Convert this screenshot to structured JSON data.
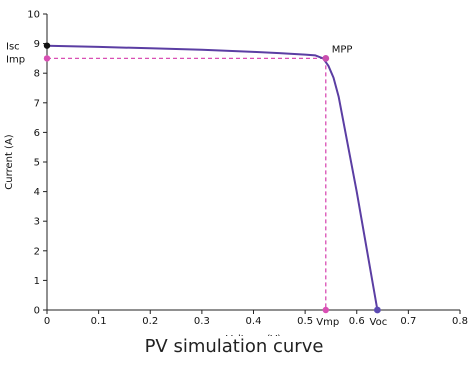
{
  "caption": "PV simulation curve",
  "chart_data": {
    "type": "line",
    "title": "",
    "xlabel": "Voltage (V)",
    "ylabel": "Current (A)",
    "xlim": [
      0,
      0.8
    ],
    "ylim": [
      0,
      10
    ],
    "x_ticks": [
      "0",
      "0.1",
      "0.2",
      "0.3",
      "0.4",
      "0.5",
      "0.6",
      "0.7",
      "0.8"
    ],
    "y_ticks": [
      "0",
      "1",
      "2",
      "3",
      "4",
      "5",
      "6",
      "7",
      "8",
      "9",
      "10"
    ],
    "grid": false,
    "series": [
      {
        "x": [
          0,
          0.1,
          0.2,
          0.3,
          0.4,
          0.45,
          0.5,
          0.52,
          0.535,
          0.545,
          0.555,
          0.565,
          0.6,
          0.64
        ],
        "y": [
          8.93,
          8.89,
          8.84,
          8.79,
          8.72,
          8.68,
          8.63,
          8.6,
          8.5,
          8.25,
          7.85,
          7.2,
          4.0,
          0.0
        ],
        "color": "#5b3ea3"
      }
    ],
    "annotations": [
      {
        "label": "Isc",
        "x": 0,
        "y": 8.93,
        "color": "#111111"
      },
      {
        "label": "Imp",
        "value": 8.5
      },
      {
        "label": "MPP",
        "x": 0.54,
        "y": 8.5,
        "color": "#c94fae"
      },
      {
        "label": "Vmp",
        "value": 0.54
      },
      {
        "label": "Voc",
        "x": 0.64,
        "y": 0,
        "color": "#5b4ab2"
      }
    ],
    "guide_color": "#d94fb4"
  }
}
